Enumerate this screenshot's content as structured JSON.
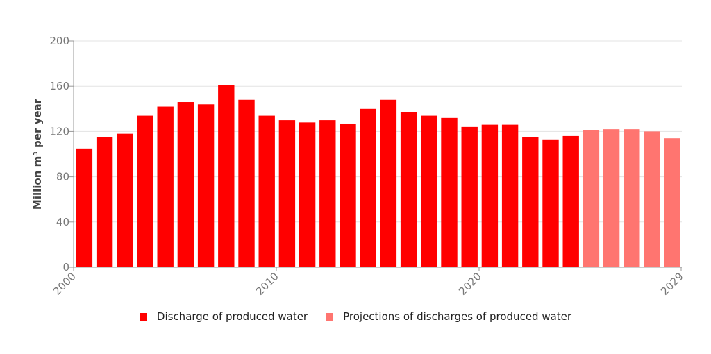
{
  "chart_data": {
    "type": "bar",
    "title": "",
    "xlabel": "",
    "ylabel": "Million m³ per year",
    "ylim": [
      0,
      200
    ],
    "yticks": [
      0,
      40,
      80,
      120,
      160,
      200
    ],
    "xticks": [
      2000,
      2010,
      2020,
      2029
    ],
    "grid": "horizontal",
    "legend_position": "bottom",
    "series": [
      {
        "name": "Discharge of produced water",
        "color": "#ff0000",
        "x": [
          2000,
          2001,
          2002,
          2003,
          2004,
          2005,
          2006,
          2007,
          2008,
          2009,
          2010,
          2011,
          2012,
          2013,
          2014,
          2015,
          2016,
          2017,
          2018,
          2019,
          2020,
          2021,
          2022,
          2023,
          2024
        ],
        "values": [
          105,
          115,
          118,
          134,
          142,
          146,
          144,
          161,
          148,
          134,
          130,
          128,
          130,
          127,
          140,
          148,
          137,
          134,
          132,
          124,
          126,
          126,
          115,
          113,
          116
        ]
      },
      {
        "name": "Projections of discharges of produced water",
        "color": "#ff7570",
        "x": [
          2025,
          2026,
          2027,
          2028,
          2029
        ],
        "values": [
          121,
          122,
          122,
          120,
          114
        ]
      }
    ]
  }
}
